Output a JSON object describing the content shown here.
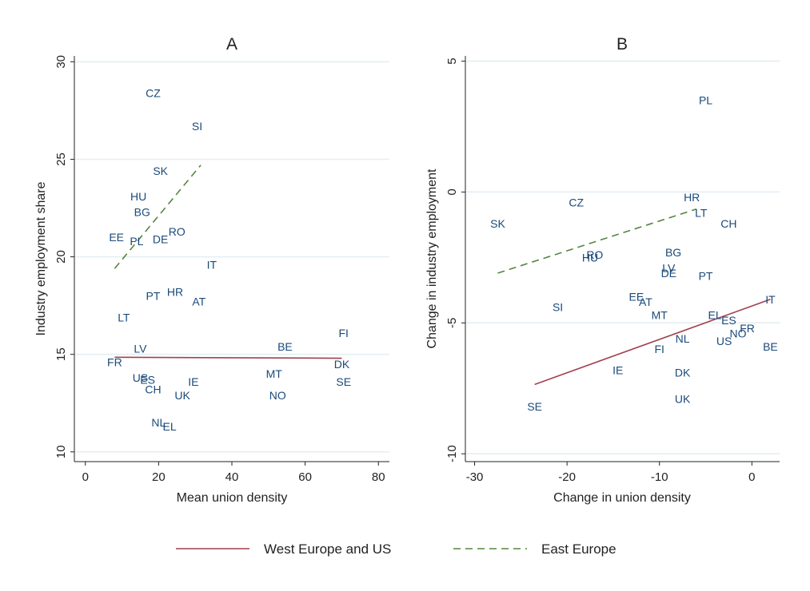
{
  "chart_data": [
    {
      "type": "scatter",
      "title": "A",
      "xlabel": "Mean union density",
      "ylabel": "Industry employment share",
      "xlim": [
        -3,
        83
      ],
      "ylim": [
        9.5,
        30.3
      ],
      "xticks": [
        0,
        20,
        40,
        60,
        80
      ],
      "yticks": [
        10,
        15,
        20,
        25,
        30
      ],
      "grid": true,
      "points": [
        {
          "label": "CZ",
          "x": 18.5,
          "y": 28.4
        },
        {
          "label": "SI",
          "x": 30.5,
          "y": 26.7
        },
        {
          "label": "SK",
          "x": 20.5,
          "y": 24.4
        },
        {
          "label": "HU",
          "x": 14.5,
          "y": 23.1
        },
        {
          "label": "BG",
          "x": 15.5,
          "y": 22.3
        },
        {
          "label": "RO",
          "x": 25.0,
          "y": 21.3
        },
        {
          "label": "EE",
          "x": 8.5,
          "y": 21.0
        },
        {
          "label": "DE",
          "x": 20.5,
          "y": 20.9
        },
        {
          "label": "PL",
          "x": 14.0,
          "y": 20.8
        },
        {
          "label": "IT",
          "x": 34.5,
          "y": 19.6
        },
        {
          "label": "PT",
          "x": 18.5,
          "y": 18.0
        },
        {
          "label": "HR",
          "x": 24.5,
          "y": 18.2
        },
        {
          "label": "AT",
          "x": 31.0,
          "y": 17.7
        },
        {
          "label": "LT",
          "x": 10.5,
          "y": 16.9
        },
        {
          "label": "FI",
          "x": 70.5,
          "y": 16.1
        },
        {
          "label": "LV",
          "x": 15.0,
          "y": 15.3
        },
        {
          "label": "BE",
          "x": 54.5,
          "y": 15.4
        },
        {
          "label": "FR",
          "x": 8.0,
          "y": 14.6
        },
        {
          "label": "DK",
          "x": 70.0,
          "y": 14.5
        },
        {
          "label": "MT",
          "x": 51.5,
          "y": 14.0
        },
        {
          "label": "US",
          "x": 15.0,
          "y": 13.8
        },
        {
          "label": "ES",
          "x": 17.0,
          "y": 13.7
        },
        {
          "label": "IE",
          "x": 29.5,
          "y": 13.6
        },
        {
          "label": "SE",
          "x": 70.5,
          "y": 13.6
        },
        {
          "label": "CH",
          "x": 18.5,
          "y": 13.2
        },
        {
          "label": "UK",
          "x": 26.5,
          "y": 12.9
        },
        {
          "label": "NO",
          "x": 52.5,
          "y": 12.9
        },
        {
          "label": "NL",
          "x": 20.0,
          "y": 11.5
        },
        {
          "label": "EL",
          "x": 23.0,
          "y": 11.3
        }
      ],
      "fit_lines": [
        {
          "series": 0,
          "x": [
            8,
            70
          ],
          "y": [
            14.85,
            14.8
          ]
        },
        {
          "series": 1,
          "x": [
            8,
            31.5
          ],
          "y": [
            19.4,
            24.7
          ]
        }
      ]
    },
    {
      "type": "scatter",
      "title": "B",
      "xlabel": "Change in union density",
      "ylabel": "Change in industry employment",
      "xlim": [
        -31,
        3
      ],
      "ylim": [
        -10.3,
        5.2
      ],
      "xticks": [
        -30,
        -20,
        -10,
        0
      ],
      "yticks": [
        -10,
        -5,
        0,
        5
      ],
      "grid": true,
      "points": [
        {
          "label": "PL",
          "x": -5.0,
          "y": 3.5
        },
        {
          "label": "HR",
          "x": -6.5,
          "y": -0.2
        },
        {
          "label": "CZ",
          "x": -19.0,
          "y": -0.4
        },
        {
          "label": "LT",
          "x": -5.5,
          "y": -0.8
        },
        {
          "label": "CH",
          "x": -2.5,
          "y": -1.2
        },
        {
          "label": "SK",
          "x": -27.5,
          "y": -1.2
        },
        {
          "label": "BG",
          "x": -8.5,
          "y": -2.3
        },
        {
          "label": "RO",
          "x": -17.0,
          "y": -2.4
        },
        {
          "label": "HU",
          "x": -17.5,
          "y": -2.5
        },
        {
          "label": "LV",
          "x": -9.0,
          "y": -2.9
        },
        {
          "label": "DE",
          "x": -9.0,
          "y": -3.1
        },
        {
          "label": "PT",
          "x": -5.0,
          "y": -3.2
        },
        {
          "label": "EE",
          "x": -12.5,
          "y": -4.0
        },
        {
          "label": "IT",
          "x": 2.0,
          "y": -4.1
        },
        {
          "label": "AT",
          "x": -11.5,
          "y": -4.2
        },
        {
          "label": "SI",
          "x": -21.0,
          "y": -4.4
        },
        {
          "label": "MT",
          "x": -10.0,
          "y": -4.7
        },
        {
          "label": "EL",
          "x": -4.0,
          "y": -4.7
        },
        {
          "label": "ES",
          "x": -2.5,
          "y": -4.9
        },
        {
          "label": "FR",
          "x": -0.5,
          "y": -5.2
        },
        {
          "label": "NO",
          "x": -1.5,
          "y": -5.4
        },
        {
          "label": "NL",
          "x": -7.5,
          "y": -5.6
        },
        {
          "label": "US",
          "x": -3.0,
          "y": -5.7
        },
        {
          "label": "BE",
          "x": 2.0,
          "y": -5.9
        },
        {
          "label": "FI",
          "x": -10.0,
          "y": -6.0
        },
        {
          "label": "IE",
          "x": -14.5,
          "y": -6.8
        },
        {
          "label": "DK",
          "x": -7.5,
          "y": -6.9
        },
        {
          "label": "UK",
          "x": -7.5,
          "y": -7.9
        },
        {
          "label": "SE",
          "x": -23.5,
          "y": -8.2
        }
      ],
      "fit_lines": [
        {
          "series": 0,
          "x": [
            -23.5,
            2
          ],
          "y": [
            -7.35,
            -4.1
          ]
        },
        {
          "series": 1,
          "x": [
            -27.5,
            -6
          ],
          "y": [
            -3.1,
            -0.65
          ]
        }
      ]
    }
  ],
  "legend": {
    "placement": "bottom",
    "series": [
      {
        "name": "West Europe and US",
        "color": "#a0414d",
        "style": "solid"
      },
      {
        "name": "East Europe",
        "color": "#55853f",
        "style": "dashed"
      }
    ]
  },
  "colors": {
    "label": "#1a4a7a",
    "grid": "#e3eef2",
    "axis": "#222222"
  }
}
